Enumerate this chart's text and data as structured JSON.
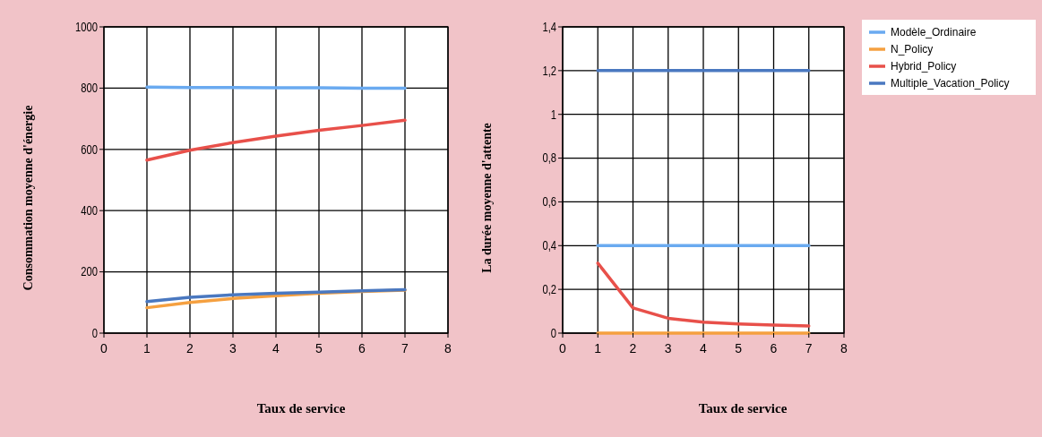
{
  "chart_data": [
    {
      "type": "line",
      "xlabel": "Taux de service",
      "ylabel": "Consommation  moyenne d'énergie",
      "x": [
        1,
        2,
        3,
        4,
        5,
        6,
        7
      ],
      "xlim": [
        0,
        8
      ],
      "xticks": [
        0,
        1,
        2,
        3,
        4,
        5,
        6,
        7,
        8
      ],
      "ylim": [
        0,
        1000
      ],
      "yticks": [
        0,
        200,
        400,
        600,
        800,
        1000
      ],
      "grid": true,
      "series": [
        {
          "color": "#6aaaf0",
          "values": [
            803,
            802,
            802,
            801,
            801,
            800,
            800
          ]
        },
        {
          "color": "#f5a040",
          "values": [
            83,
            100,
            113,
            122,
            130,
            136,
            140
          ]
        },
        {
          "color": "#e8504a",
          "values": [
            565,
            597,
            622,
            643,
            662,
            678,
            695
          ]
        },
        {
          "color": "#4a78c0",
          "values": [
            103,
            117,
            125,
            130,
            134,
            138,
            142
          ]
        }
      ]
    },
    {
      "type": "line",
      "xlabel": "Taux de service",
      "ylabel": "La durée moyenne d'attente",
      "x": [
        1,
        2,
        3,
        4,
        5,
        6,
        7
      ],
      "xlim": [
        0,
        8
      ],
      "xticks": [
        0,
        1,
        2,
        3,
        4,
        5,
        6,
        7,
        8
      ],
      "ylim": [
        0,
        1.4
      ],
      "yticks": [
        0,
        {
          "value": 0.2,
          "label": "0,2"
        },
        {
          "value": 0.4,
          "label": "0,4"
        },
        {
          "value": 0.6,
          "label": "0,6"
        },
        {
          "value": 0.8,
          "label": "0,8"
        },
        1,
        {
          "value": 1.2,
          "label": "1,2"
        },
        {
          "value": 1.4,
          "label": "1,4"
        }
      ],
      "grid": true,
      "legend": "right",
      "series": [
        {
          "name": "Modèle_Ordinaire",
          "color": "#6aaaf0",
          "values": [
            0.4,
            0.4,
            0.4,
            0.4,
            0.4,
            0.4,
            0.4
          ]
        },
        {
          "name": "N_Policy",
          "color": "#f5a040",
          "values": [
            0,
            0,
            0,
            0,
            0,
            0,
            0
          ]
        },
        {
          "name": "Hybrid_Policy",
          "color": "#e8504a",
          "values": [
            0.32,
            0.115,
            0.068,
            0.05,
            0.042,
            0.037,
            0.033
          ]
        },
        {
          "name": "Multiple_Vacation_Policy",
          "color": "#4a78c0",
          "values": [
            1.2,
            1.2,
            1.2,
            1.2,
            1.2,
            1.2,
            1.2
          ]
        }
      ]
    }
  ]
}
